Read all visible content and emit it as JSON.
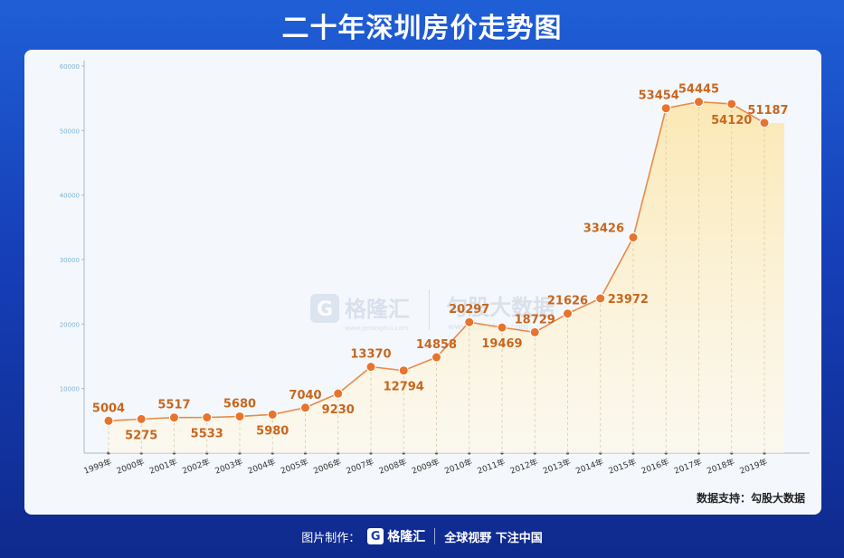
{
  "title": "二十年深圳房价走势图",
  "source_label": "数据支持：勾股大数据",
  "footer": {
    "made_by": "图片制作：",
    "logo_letter": "G",
    "brand": "格隆汇",
    "slogan": "全球视野 下注中国"
  },
  "watermark": {
    "logo_letter": "G",
    "brand": "格隆汇",
    "brand_url": "www.gelonghui.com",
    "partner": "勾股大数据",
    "partner_url": "www.gogudata.com"
  },
  "colors": {
    "line": "#e88a4a",
    "marker": "#e8732c",
    "label": "#c8661e",
    "area_top": "#fbe7b0",
    "area_bottom": "#fff8e6"
  },
  "chart_data": {
    "type": "area",
    "categories": [
      "1999年",
      "2000年",
      "2001年",
      "2002年",
      "2003年",
      "2004年",
      "2005年",
      "2006年",
      "2007年",
      "2008年",
      "2009年",
      "2010年",
      "2011年",
      "2012年",
      "2013年",
      "2014年",
      "2015年",
      "2016年",
      "2017年",
      "2018年",
      "2019年"
    ],
    "values": [
      5004,
      5275,
      5517,
      5533,
      5680,
      5980,
      7040,
      9230,
      13370,
      12794,
      14858,
      20297,
      19469,
      18729,
      21626,
      23972,
      33426,
      53454,
      54445,
      54120,
      51187
    ],
    "yticks": [
      "10000",
      "20000",
      "30000",
      "40000",
      "50000",
      "60000"
    ],
    "ylim": [
      0,
      60000
    ],
    "grid": false
  }
}
